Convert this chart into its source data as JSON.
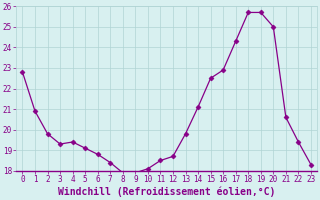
{
  "x": [
    0,
    1,
    2,
    3,
    4,
    5,
    6,
    7,
    8,
    9,
    10,
    11,
    12,
    13,
    14,
    15,
    16,
    17,
    18,
    19,
    20,
    21,
    22,
    23
  ],
  "y": [
    22.8,
    20.9,
    19.8,
    19.3,
    19.4,
    19.1,
    18.8,
    18.4,
    17.9,
    17.9,
    18.1,
    18.5,
    18.7,
    19.8,
    21.1,
    22.5,
    22.9,
    24.3,
    25.7,
    25.7,
    25.0,
    20.6,
    19.4,
    18.3
  ],
  "line_color": "#880088",
  "marker": "D",
  "marker_size": 2.5,
  "bg_color": "#d8f0f0",
  "grid_color": "#b0d4d4",
  "xlabel": "Windchill (Refroidissement éolien,°C)",
  "xlabel_color": "#880088",
  "ylim": [
    18,
    26
  ],
  "yticks": [
    18,
    19,
    20,
    21,
    22,
    23,
    24,
    25,
    26
  ],
  "xticks": [
    0,
    1,
    2,
    3,
    4,
    5,
    6,
    7,
    8,
    9,
    10,
    11,
    12,
    13,
    14,
    15,
    16,
    17,
    18,
    19,
    20,
    21,
    22,
    23
  ],
  "tick_label_color": "#880088",
  "tick_fontsize": 5.5,
  "xlabel_fontsize": 7.0,
  "spine_color": "#880088"
}
